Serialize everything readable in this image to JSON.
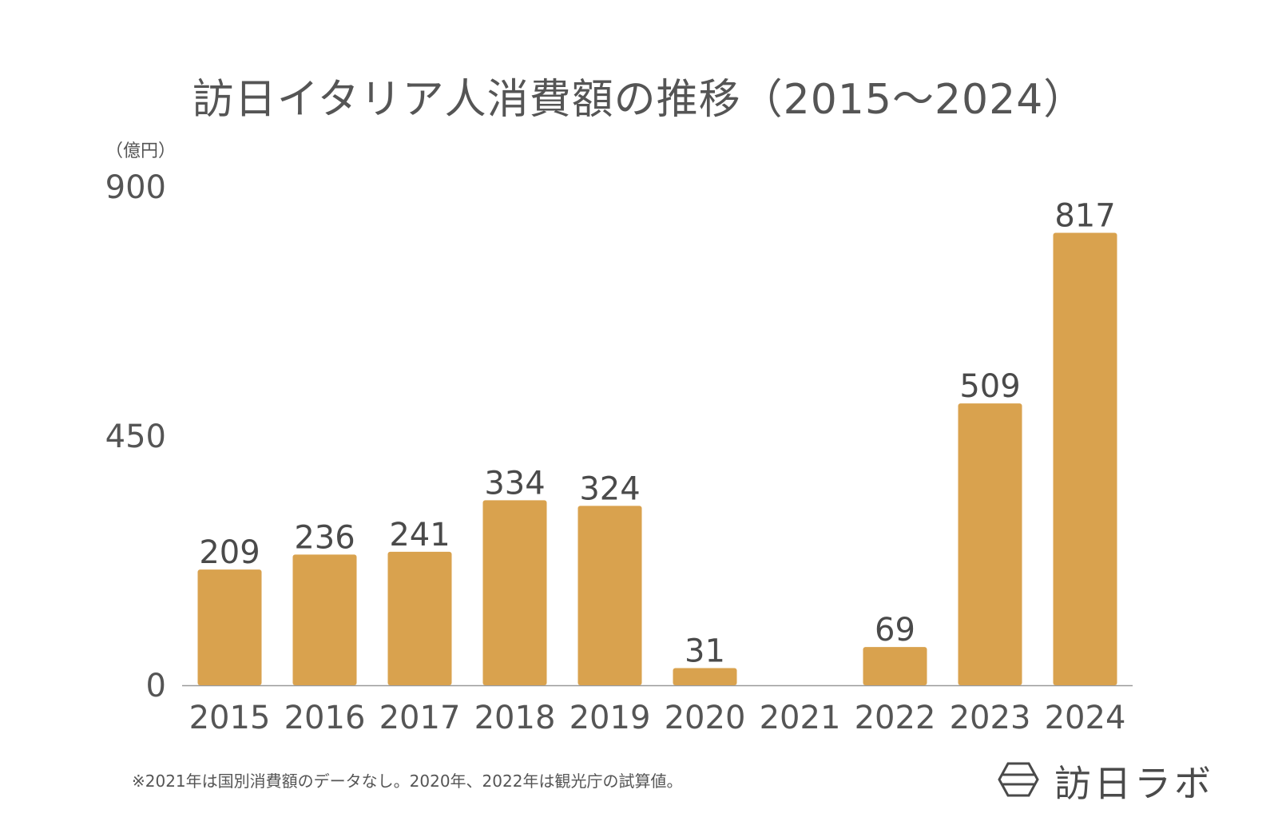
{
  "chart_data": {
    "type": "bar",
    "title": "訪日イタリア人消費額の推移（2015〜2024）",
    "ylabel": "（億円）",
    "xlabel": "",
    "categories": [
      "2015",
      "2016",
      "2017",
      "2018",
      "2019",
      "2020",
      "2021",
      "2022",
      "2023",
      "2024"
    ],
    "values": [
      209,
      236,
      241,
      334,
      324,
      31,
      null,
      69,
      509,
      817
    ],
    "value_labels": [
      "209",
      "236",
      "241",
      "334",
      "324",
      "31",
      "",
      "69",
      "509",
      "817"
    ],
    "ylim": [
      0,
      900
    ],
    "yticks": [
      0,
      450,
      900
    ],
    "ytick_labels": [
      "0",
      "450",
      "900"
    ],
    "grid": false,
    "legend": "none",
    "bar_color": "#D9A24E",
    "axis_color": "#999999"
  },
  "footnote": "※2021年は国別消費額のデータなし。2020年、2022年は観光庁の試算値。",
  "brand": {
    "name": "訪日ラボ",
    "icon": "brand-hexagon-icon"
  }
}
